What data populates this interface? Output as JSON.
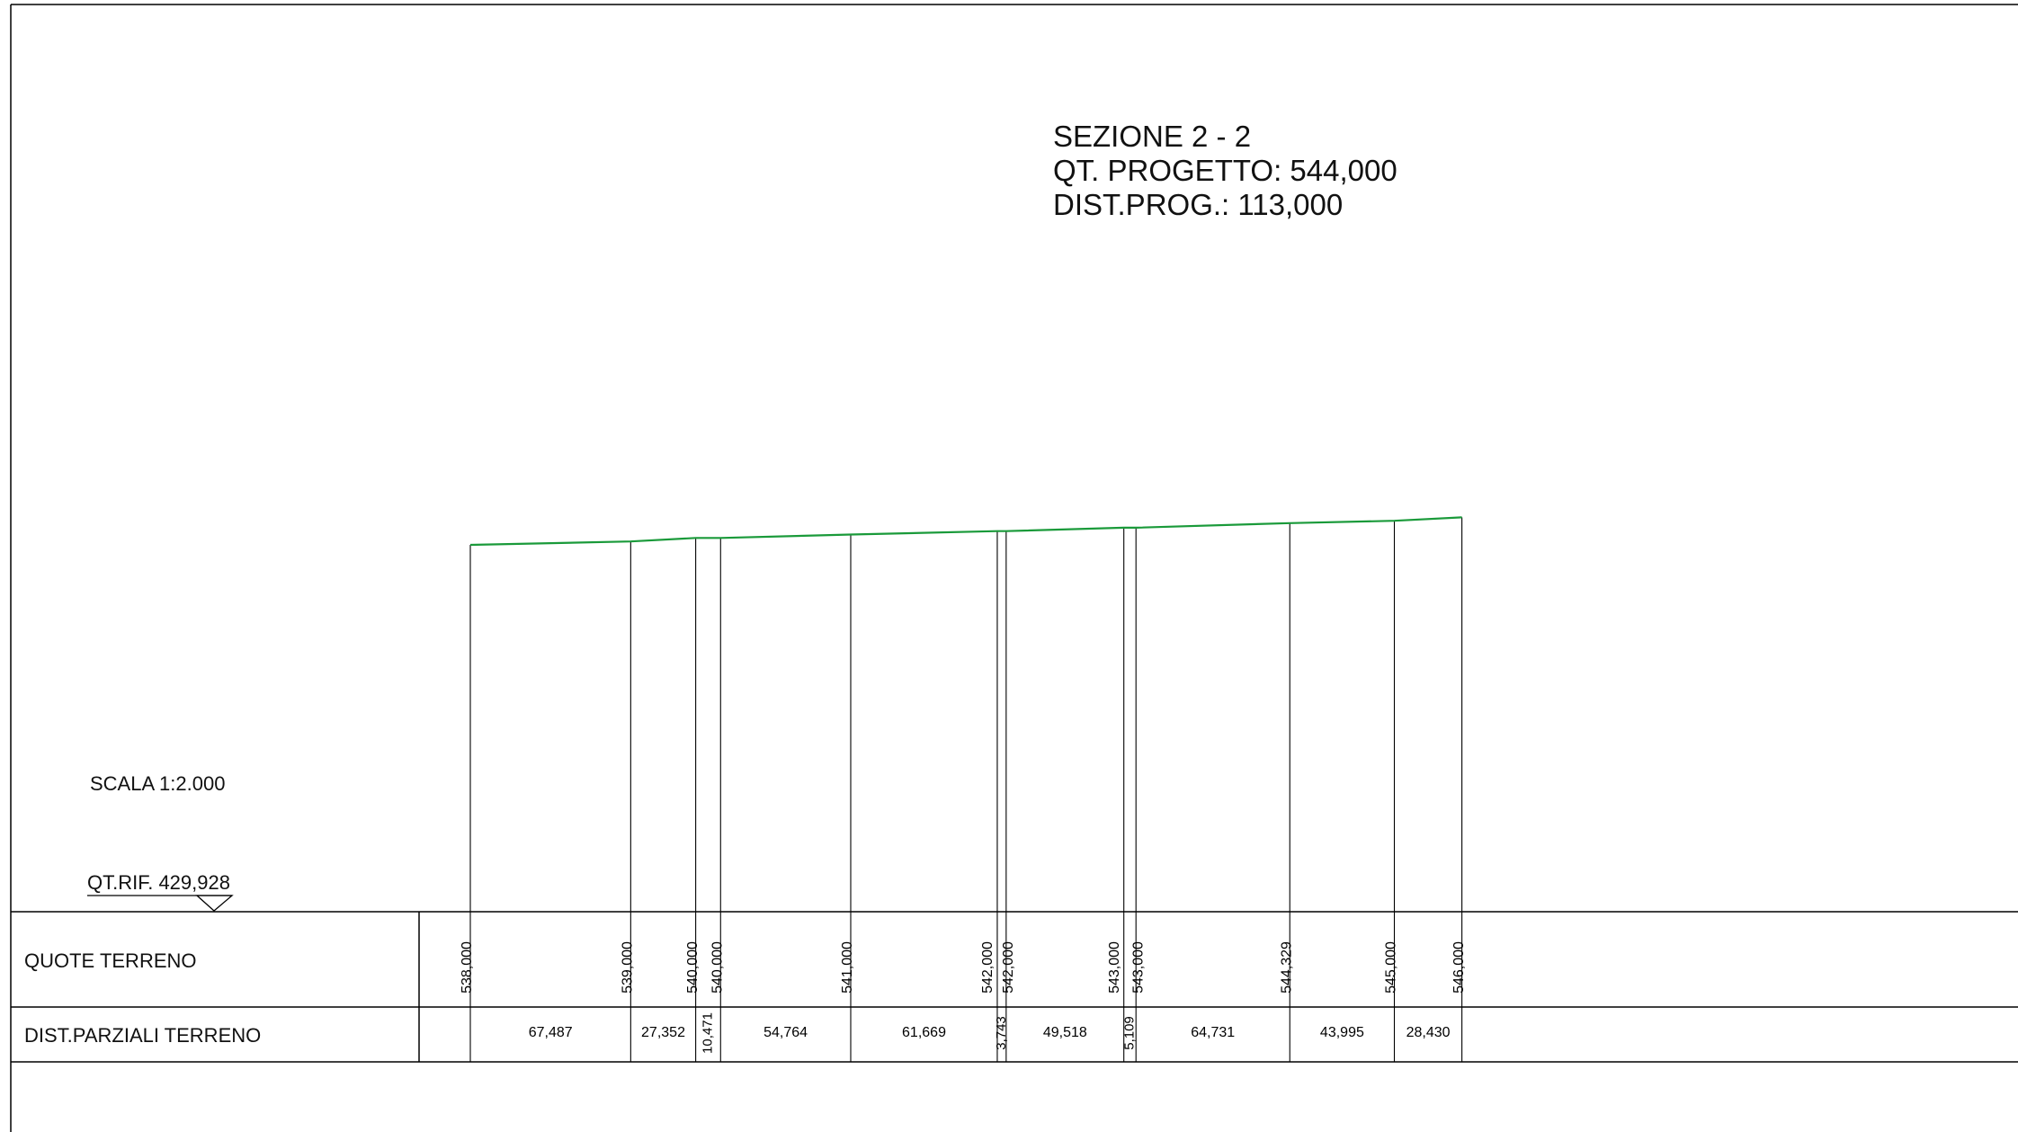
{
  "title": {
    "section": "SEZIONE 2 - 2",
    "project_level": "QT. PROGETTO: 544,000",
    "progressive_distance": "DIST.PROG.: 113,000"
  },
  "scale_label": "SCALA 1:2.000",
  "reference_level_label": "QT.RIF. 429,928",
  "table": {
    "row_labels": [
      "QUOTE TERRENO",
      "DIST.PARZIALI TERRENO"
    ]
  },
  "chart_data": {
    "type": "line",
    "series": [
      {
        "name": "",
        "color": "#1a9a3a",
        "stations": [
          0,
          67.487,
          94.839,
          105.31,
          160.074,
          221.743,
          225.486,
          275.004,
          280.113,
          344.844,
          388.839,
          417.269
        ],
        "elevations_labeled": [
          "538,000",
          "539,000",
          "540,000",
          "540,000",
          "541,000",
          "542,000",
          "542,000",
          "543,000",
          "543,000",
          "544,329",
          "545,000",
          "546,000"
        ],
        "elevations": [
          538.0,
          539.0,
          540.0,
          540.0,
          541.0,
          542.0,
          542.0,
          543.0,
          543.0,
          544.329,
          545.0,
          546.0
        ]
      }
    ],
    "partial_distances": [
      "67,487",
      "27,352",
      "10,471",
      "54,764",
      "61,669",
      "3,743",
      "49,518",
      "5,109",
      "64,731",
      "43,995",
      "28,430"
    ],
    "reference_level": 429.928
  }
}
